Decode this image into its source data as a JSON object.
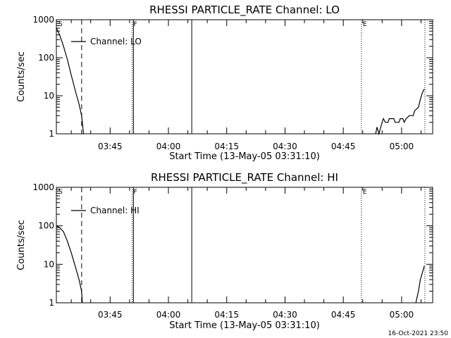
{
  "timestamp": "16-Oct-2021 23:50",
  "chart_data": [
    {
      "type": "line",
      "title": "RHESSI PARTICLE_RATE Channel: LO",
      "xlabel": "Start Time (13-May-05 03:31:10)",
      "ylabel": "Counts/sec",
      "yscale": "log",
      "ylim": [
        1,
        1000
      ],
      "xlim": [
        "03:31:10",
        "05:08:00"
      ],
      "xticks": [
        "03:45",
        "04:00",
        "04:15",
        "04:30",
        "04:45",
        "05:00"
      ],
      "yticks": [
        "1",
        "10",
        "100",
        "1000"
      ],
      "legend": "Channel: LO",
      "marker_labels": [
        "S",
        "F",
        "E"
      ],
      "vlines": [
        {
          "time": "03:37:40",
          "style": "dashed"
        },
        {
          "time": "03:50:40",
          "style": "dotted"
        },
        {
          "time": "03:51:00",
          "style": "solid"
        },
        {
          "time": "04:06:00",
          "style": "solid"
        },
        {
          "time": "04:49:40",
          "style": "dotted"
        },
        {
          "time": "05:06:00",
          "style": "dotted"
        }
      ],
      "series": [
        {
          "segments": [
            [
              [
                "03:31:10",
                600
              ],
              [
                "03:32:00",
                400
              ],
              [
                "03:33:00",
                200
              ],
              [
                "03:34:00",
                90
              ],
              [
                "03:35:00",
                35
              ],
              [
                "03:36:00",
                14
              ],
              [
                "03:37:00",
                6
              ],
              [
                "03:37:40",
                3
              ],
              [
                "03:38:10",
                1
              ]
            ],
            [
              [
                "04:53:20",
                1
              ],
              [
                "04:53:40",
                1.5
              ],
              [
                "04:54:10",
                1
              ],
              [
                "04:55:00",
                2
              ],
              [
                "04:55:20",
                2.5
              ],
              [
                "04:55:50",
                2
              ],
              [
                "04:56:30",
                2
              ],
              [
                "04:56:50",
                2.5
              ],
              [
                "04:58:00",
                2.5
              ],
              [
                "04:58:20",
                2
              ],
              [
                "04:59:20",
                2
              ],
              [
                "04:59:40",
                2.5
              ],
              [
                "05:00:20",
                2.5
              ],
              [
                "05:00:40",
                2
              ],
              [
                "05:01:10",
                2.5
              ],
              [
                "05:02:00",
                3
              ],
              [
                "05:03:00",
                3
              ],
              [
                "05:03:20",
                4
              ],
              [
                "05:04:20",
                5
              ],
              [
                "05:04:50",
                8
              ],
              [
                "05:05:20",
                12
              ],
              [
                "05:05:50",
                15
              ]
            ]
          ]
        }
      ]
    },
    {
      "type": "line",
      "title": "RHESSI PARTICLE_RATE Channel: HI",
      "xlabel": "Start Time (13-May-05 03:31:10)",
      "ylabel": "Counts/sec",
      "yscale": "log",
      "ylim": [
        1,
        1000
      ],
      "xlim": [
        "03:31:10",
        "05:08:00"
      ],
      "xticks": [
        "03:45",
        "04:00",
        "04:15",
        "04:30",
        "04:45",
        "05:00"
      ],
      "yticks": [
        "1",
        "10",
        "100",
        "1000"
      ],
      "legend": "Channel: HI",
      "marker_labels": [
        "S",
        "F",
        "E"
      ],
      "vlines": [
        {
          "time": "03:37:40",
          "style": "dashed"
        },
        {
          "time": "03:50:40",
          "style": "dotted"
        },
        {
          "time": "03:51:00",
          "style": "solid"
        },
        {
          "time": "04:06:00",
          "style": "solid"
        },
        {
          "time": "04:49:40",
          "style": "dotted"
        },
        {
          "time": "05:06:00",
          "style": "dotted"
        }
      ],
      "series": [
        {
          "segments": [
            [
              [
                "03:31:10",
                100
              ],
              [
                "03:32:00",
                90
              ],
              [
                "03:33:00",
                70
              ],
              [
                "03:34:00",
                40
              ],
              [
                "03:35:00",
                20
              ],
              [
                "03:36:00",
                9
              ],
              [
                "03:37:00",
                4
              ],
              [
                "03:37:40",
                2
              ],
              [
                "03:37:50",
                1
              ]
            ],
            [
              [
                "05:03:40",
                1
              ],
              [
                "05:04:20",
                2
              ],
              [
                "05:04:50",
                4
              ],
              [
                "05:05:20",
                6
              ],
              [
                "05:05:50",
                9
              ]
            ]
          ]
        }
      ]
    }
  ]
}
